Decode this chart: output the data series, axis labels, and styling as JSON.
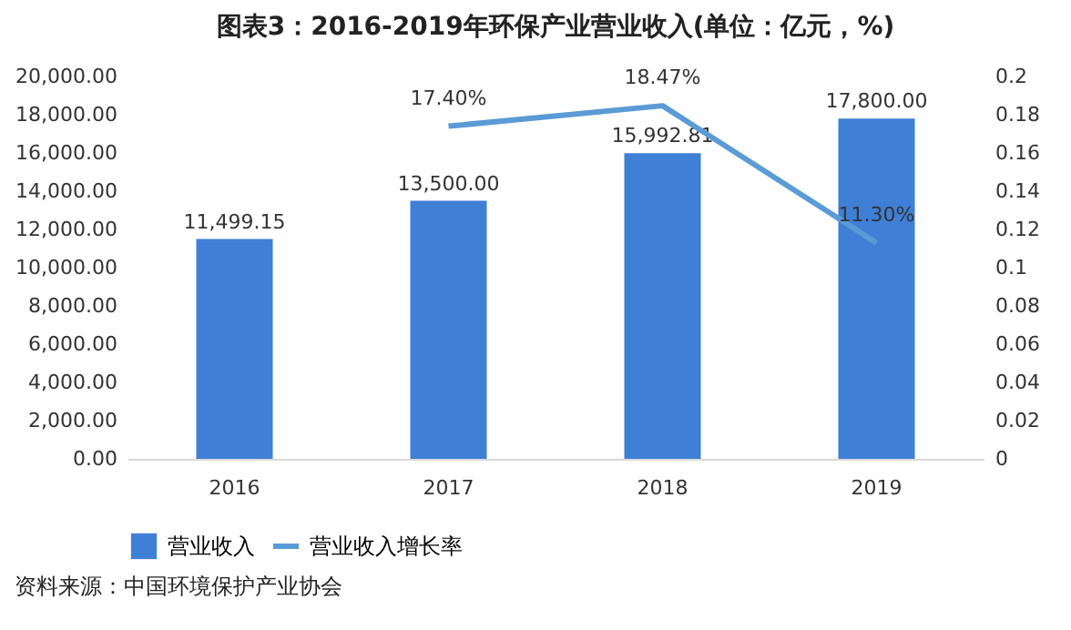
{
  "chart_data": {
    "type": "bar",
    "title": "图表3：2016-2019年环保产业营业收入(单位：亿元，%)",
    "categories": [
      "2016",
      "2017",
      "2018",
      "2019"
    ],
    "series": [
      {
        "name": "营业收入",
        "color": "#3f7fd6",
        "values": [
          11499.15,
          13500.0,
          15992.81,
          17800.0
        ],
        "value_labels": [
          "11,499.15",
          "13,500.00",
          "15,992.81",
          "17,800.00"
        ]
      },
      {
        "name": "营业收入增长率",
        "type": "line",
        "axis": "y2",
        "color": "#5b9bd5",
        "values": [
          null,
          0.174,
          0.1847,
          0.113
        ],
        "value_labels": [
          null,
          "17.40%",
          "18.47%",
          "11.30%"
        ]
      }
    ],
    "ylim": [
      0,
      20000
    ],
    "yticks": [
      {
        "value": 0,
        "label": "0.00"
      },
      {
        "value": 2000,
        "label": "2,000.00"
      },
      {
        "value": 4000,
        "label": "4,000.00"
      },
      {
        "value": 6000,
        "label": "6,000.00"
      },
      {
        "value": 8000,
        "label": "8,000.00"
      },
      {
        "value": 10000,
        "label": "10,000.00"
      },
      {
        "value": 12000,
        "label": "12,000.00"
      },
      {
        "value": 14000,
        "label": "14,000.00"
      },
      {
        "value": 16000,
        "label": "16,000.00"
      },
      {
        "value": 18000,
        "label": "18,000.00"
      },
      {
        "value": 20000,
        "label": "20,000.00"
      }
    ],
    "y2lim": [
      0,
      0.2
    ],
    "y2ticks": [
      0,
      0.02,
      0.04,
      0.06,
      0.08,
      0.1,
      0.12,
      0.14,
      0.16,
      0.18,
      0.2
    ],
    "grid": false,
    "legend": "bottom",
    "marker": "none",
    "line_style": "solid",
    "annotations": [
      "资料来源：中国环境保护产业协会"
    ]
  }
}
